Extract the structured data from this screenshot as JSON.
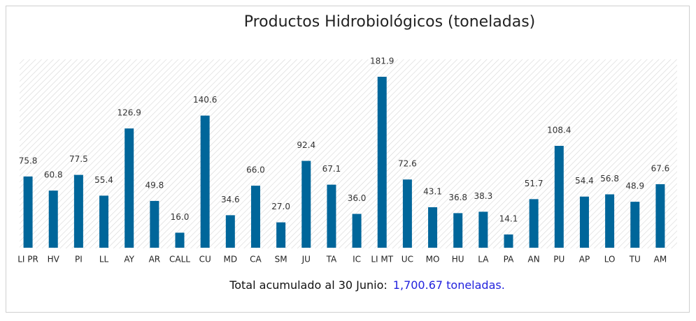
{
  "chart_data": {
    "type": "bar",
    "title": "Productos Hidrobiológicos (toneladas)",
    "categories": [
      "LI PR",
      "HV",
      "PI",
      "LL",
      "AY",
      "AR",
      "CALL",
      "CU",
      "MD",
      "CA",
      "SM",
      "JU",
      "TA",
      "IC",
      "LI MT",
      "UC",
      "MO",
      "HU",
      "LA",
      "PA",
      "AN",
      "PU",
      "AP",
      "LO",
      "TU",
      "AM"
    ],
    "values": [
      75.8,
      60.8,
      77.5,
      55.4,
      126.9,
      49.8,
      16.0,
      140.6,
      34.6,
      66.0,
      27.0,
      92.4,
      67.1,
      36.0,
      181.9,
      72.6,
      43.1,
      36.8,
      38.3,
      14.1,
      51.7,
      108.4,
      54.4,
      56.8,
      48.9,
      67.6
    ],
    "value_labels": [
      "75.8",
      "60.8",
      "77.5",
      "55.4",
      "126.9",
      "49.8",
      "16.0",
      "140.6",
      "34.6",
      "66.0",
      "27.0",
      "92.4",
      "67.1",
      "36.0",
      "181.9",
      "72.6",
      "43.1",
      "36.8",
      "38.3",
      "14.1",
      "51.7",
      "108.4",
      "54.4",
      "56.8",
      "48.9",
      "67.6"
    ],
    "color": "#00669a",
    "footer": {
      "label": "Total acumulado al 30 Junio:",
      "value": "1,700.67 toneladas."
    }
  }
}
